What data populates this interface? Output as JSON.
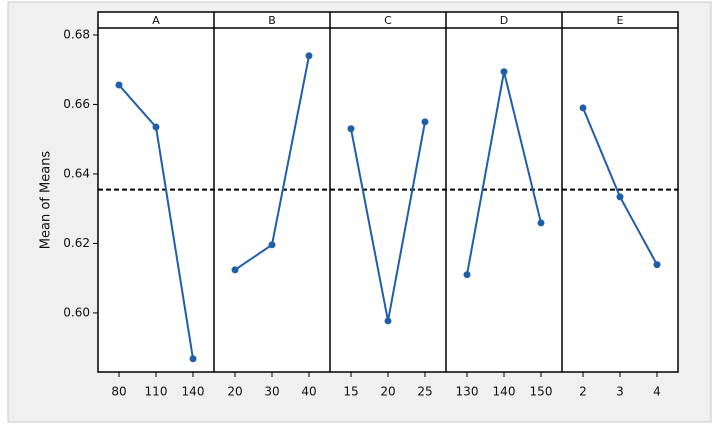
{
  "chart_data": {
    "type": "line",
    "ylabel": "Mean of Means",
    "color": "#1f5fa8",
    "ylim": [
      0.583,
      0.682
    ],
    "yticks": [
      {
        "value": 0.6,
        "label": "0.60"
      },
      {
        "value": 0.62,
        "label": "0.62"
      },
      {
        "value": 0.64,
        "label": "0.64"
      },
      {
        "value": 0.66,
        "label": "0.66"
      },
      {
        "value": 0.68,
        "label": "0.68"
      }
    ],
    "hline": 0.6355,
    "panels": [
      {
        "title": "A",
        "categories": [
          "80",
          "110",
          "140"
        ],
        "values": [
          0.6656,
          0.6535,
          0.5868
        ]
      },
      {
        "title": "B",
        "categories": [
          "20",
          "30",
          "40"
        ],
        "values": [
          0.6124,
          0.6196,
          0.674
        ]
      },
      {
        "title": "C",
        "categories": [
          "15",
          "20",
          "25"
        ],
        "values": [
          0.653,
          0.5977,
          0.655
        ]
      },
      {
        "title": "D",
        "categories": [
          "130",
          "140",
          "150"
        ],
        "values": [
          0.611,
          0.6694,
          0.6259
        ]
      },
      {
        "title": "E",
        "categories": [
          "2",
          "3",
          "4"
        ],
        "values": [
          0.659,
          0.6334,
          0.6139
        ]
      }
    ]
  }
}
